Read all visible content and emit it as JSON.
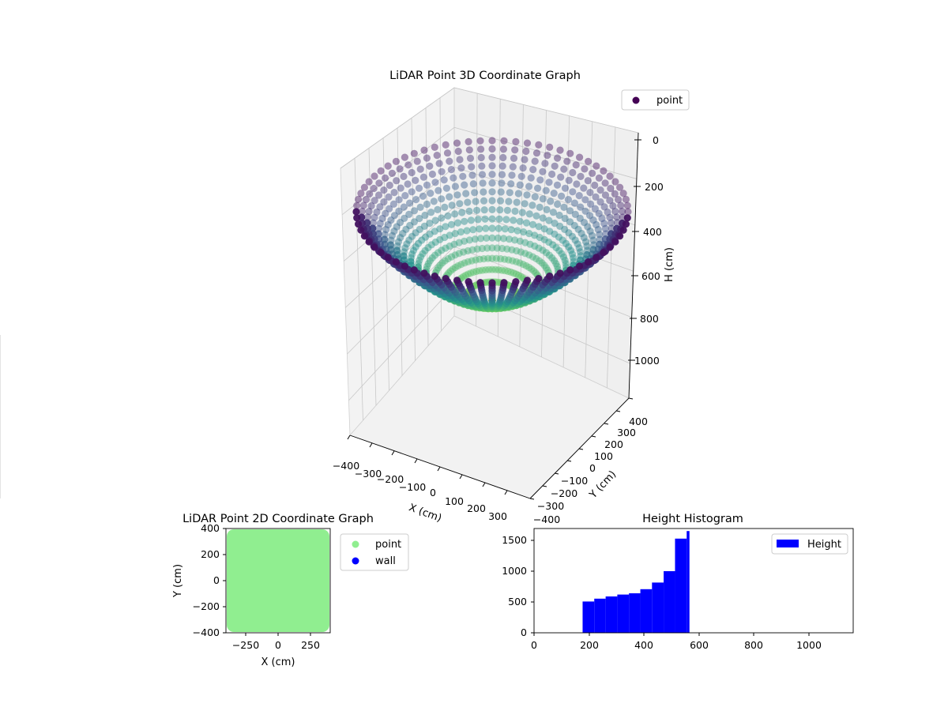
{
  "chart_data": [
    {
      "type": "scatter3d",
      "title": "LiDAR Point 3D Coordinate Graph",
      "xlabel": "X (cm)",
      "ylabel": "Y (cm)",
      "zlabel": "H (cm)",
      "xlim": [
        -400,
        400
      ],
      "ylim": [
        -400,
        400
      ],
      "zlim": [
        1150,
        0
      ],
      "z_inverted": true,
      "xticks": [
        "−400",
        "−300",
        "−200",
        "−100",
        "0",
        "100",
        "200",
        "300"
      ],
      "yticks": [
        "−400",
        "−300",
        "−200",
        "−100",
        "0",
        "100",
        "200",
        "300",
        "400"
      ],
      "zticks": [
        "0",
        "200",
        "400",
        "600",
        "800",
        "1000"
      ],
      "colormap": "viridis",
      "grid": true,
      "legend": {
        "position": "upper-right",
        "entries": [
          {
            "label": "point",
            "color": "#440154"
          }
        ]
      },
      "surface": {
        "shape": "bowl",
        "rim_radius": 400,
        "rim_height": 180,
        "bottom_height": 560,
        "bottom_radius": 0
      }
    },
    {
      "type": "scatter",
      "title": "LiDAR Point 2D Coordinate Graph",
      "xlabel": "X (cm)",
      "ylabel": "Y (cm)",
      "xlim": [
        -400,
        400
      ],
      "ylim": [
        -400,
        400
      ],
      "xticks": [
        "−250",
        "0",
        "250"
      ],
      "yticks": [
        "−400",
        "−200",
        "0",
        "200",
        "400"
      ],
      "legend": {
        "position": "outside-right",
        "entries": [
          {
            "label": "point",
            "color": "#90ee90"
          },
          {
            "label": "wall",
            "color": "#0000ff"
          }
        ]
      },
      "fill_region": {
        "x": [
          -400,
          400
        ],
        "y": [
          -400,
          400
        ],
        "color": "#90ee90"
      }
    },
    {
      "type": "bar",
      "title": "Height Histogram",
      "xlabel": "",
      "ylabel": "",
      "xlim": [
        0,
        1150
      ],
      "ylim": [
        0,
        1650
      ],
      "xticks": [
        "0",
        "200",
        "400",
        "600",
        "800",
        "1000"
      ],
      "yticks": [
        "0",
        "500",
        "1000",
        "1500"
      ],
      "legend": {
        "position": "top-right",
        "entries": [
          {
            "label": "Height",
            "color": "#0000ff"
          }
        ]
      },
      "bar_color": "#0000ff",
      "bins": [
        {
          "x0": 175,
          "x1": 217,
          "value": 495
        },
        {
          "x0": 217,
          "x1": 258,
          "value": 540
        },
        {
          "x0": 258,
          "x1": 300,
          "value": 575
        },
        {
          "x0": 300,
          "x1": 342,
          "value": 605
        },
        {
          "x0": 342,
          "x1": 383,
          "value": 625
        },
        {
          "x0": 383,
          "x1": 425,
          "value": 690
        },
        {
          "x0": 425,
          "x1": 467,
          "value": 795
        },
        {
          "x0": 467,
          "x1": 508,
          "value": 975
        },
        {
          "x0": 508,
          "x1": 550,
          "value": 1490
        },
        {
          "x0": 550,
          "x1": 560,
          "value": 1610
        }
      ]
    }
  ]
}
